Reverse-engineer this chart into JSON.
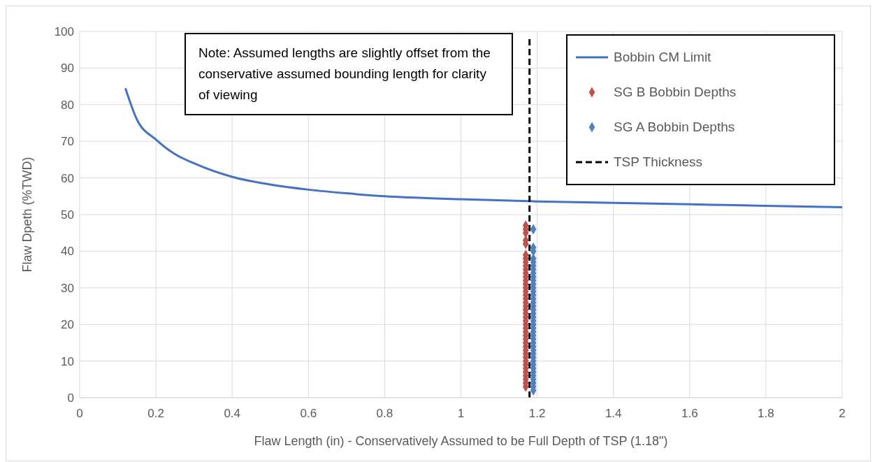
{
  "chart_data": {
    "type": "scatter",
    "xlabel": "Flaw Length (in) - Conservatively Assumed to be Full Depth of TSP (1.18\")",
    "ylabel": "Flaw Dpeth (%TWD)",
    "xlim": [
      0,
      2
    ],
    "xticks": [
      0,
      0.2,
      0.4,
      0.6,
      0.8,
      1,
      1.2,
      1.4,
      1.6,
      1.8,
      2
    ],
    "ylim": [
      0,
      100
    ],
    "yticks": [
      0,
      10,
      20,
      30,
      40,
      50,
      60,
      70,
      80,
      90,
      100
    ],
    "grid": true,
    "legend": "top right",
    "annotations": [
      "Note: Assumed lengths are slightly offset from the conservative assumed bounding length for clarity of viewing"
    ],
    "series": [
      {
        "name": "Bobbin CM Limit",
        "type": "line",
        "color": "#4472c4",
        "marker": "none",
        "line_style": "solid",
        "x": [
          0.12,
          0.15,
          0.2,
          0.25,
          0.3,
          0.4,
          0.5,
          0.6,
          0.7,
          0.8,
          1.0,
          1.2,
          1.4,
          1.6,
          1.8,
          2.0
        ],
        "values": [
          84.5,
          76,
          70.5,
          66.5,
          64,
          60.3,
          58.2,
          56.8,
          55.8,
          55,
          54.2,
          53.6,
          53.2,
          52.8,
          52.4,
          52
        ]
      },
      {
        "name": "SG B Bobbin Depths",
        "color": "#c0504d",
        "marker": "diamond",
        "x": [
          1.17,
          1.17,
          1.17,
          1.17,
          1.17,
          1.17,
          1.17,
          1.17,
          1.17,
          1.17,
          1.17,
          1.17,
          1.17,
          1.17,
          1.17,
          1.17,
          1.17,
          1.17,
          1.17,
          1.17,
          1.17,
          1.17,
          1.17,
          1.17,
          1.17,
          1.17,
          1.17,
          1.17,
          1.17,
          1.17,
          1.17,
          1.17,
          1.17,
          1.17,
          1.17,
          1.17,
          1.17,
          1.17,
          1.17,
          1.17,
          1.17,
          1.17
        ],
        "values": [
          47,
          46,
          45,
          43,
          42,
          39,
          38,
          37,
          36,
          35,
          34,
          33,
          32,
          31,
          30,
          29,
          28,
          27,
          26,
          25,
          24,
          23,
          22,
          21,
          20,
          19,
          18,
          17,
          16,
          15,
          14,
          13,
          12,
          11,
          10,
          9,
          8,
          7,
          6,
          5,
          4,
          3
        ]
      },
      {
        "name": "SG A Bobbin Depths",
        "color": "#4f81bd",
        "marker": "diamond",
        "x": [
          1.19,
          1.19,
          1.19,
          1.19,
          1.19,
          1.19,
          1.19,
          1.19,
          1.19,
          1.19,
          1.19,
          1.19,
          1.19,
          1.19,
          1.19,
          1.19,
          1.19,
          1.19,
          1.19,
          1.19,
          1.19,
          1.19,
          1.19,
          1.19,
          1.19,
          1.19,
          1.19,
          1.19,
          1.19,
          1.19,
          1.19,
          1.19,
          1.19,
          1.19,
          1.19,
          1.19,
          1.19,
          1.19,
          1.19,
          1.19
        ],
        "values": [
          46,
          41,
          40,
          38,
          37,
          36,
          35,
          34,
          33,
          32,
          31,
          30,
          29,
          28,
          27,
          26,
          25,
          24,
          23,
          22,
          21,
          20,
          19,
          18,
          17,
          16,
          15,
          14,
          13,
          12,
          11,
          10,
          9,
          8,
          7,
          6,
          5,
          4,
          3,
          2
        ]
      },
      {
        "name": "TSP Thickness",
        "type": "line",
        "color": "#000000",
        "marker": "none",
        "line_style": "dashed",
        "x": [
          1.18,
          1.18
        ],
        "values": [
          0,
          98
        ]
      }
    ]
  }
}
